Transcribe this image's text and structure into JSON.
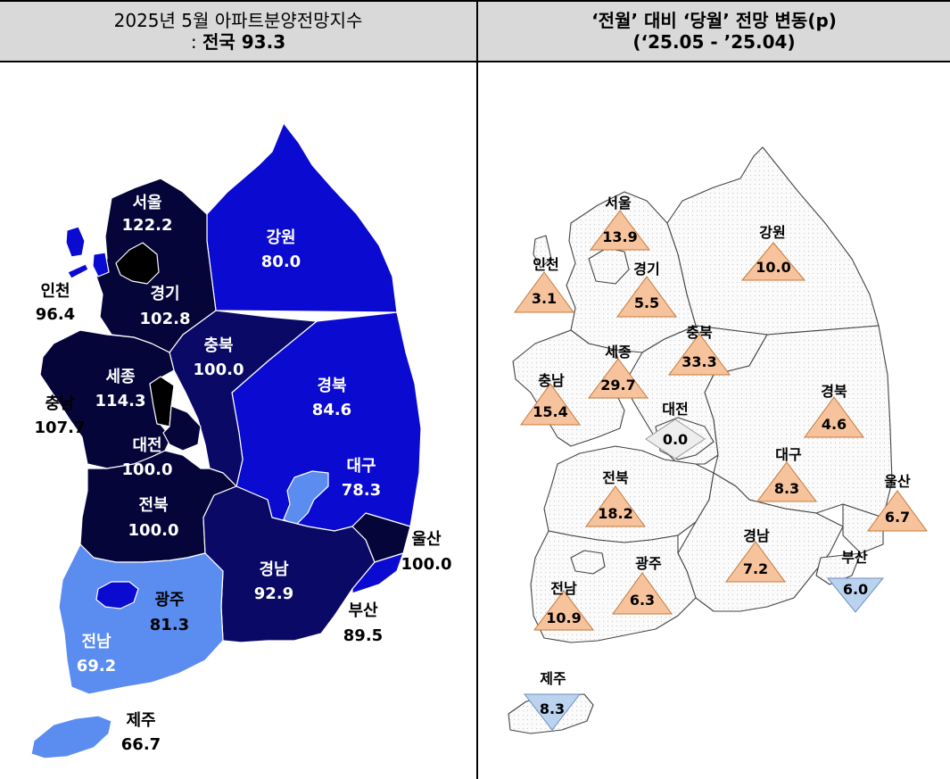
{
  "header": {
    "left_line1": "2025년 5월 아파트분양전망지수",
    "left_line2_prefix": ": ",
    "left_line2_bold": "전국 93.3",
    "right_line1": "‘전월’ 대비 ‘당월’ 전망 변동(p)",
    "right_line2": "(‘25.05 - ’25.04)"
  },
  "colors": {
    "dark_navy": "#05053a",
    "navy": "#0a0a66",
    "blue": "#0a0ad0",
    "light_blue": "#5b8cf0",
    "black": "#000000",
    "up_triangle": "#f7c39c",
    "down_triangle": "#bcd3f0",
    "neutral": "#eeeeee"
  },
  "left_map": {
    "regions": [
      {
        "name": "서울",
        "value": "122.2"
      },
      {
        "name": "인천",
        "value": "96.4"
      },
      {
        "name": "경기",
        "value": "102.8"
      },
      {
        "name": "강원",
        "value": "80.0"
      },
      {
        "name": "충북",
        "value": "100.0"
      },
      {
        "name": "세종",
        "value": "114.3"
      },
      {
        "name": "충남",
        "value": "107.7"
      },
      {
        "name": "대전",
        "value": "100.0"
      },
      {
        "name": "경북",
        "value": "84.6"
      },
      {
        "name": "대구",
        "value": "78.3"
      },
      {
        "name": "전북",
        "value": "100.0"
      },
      {
        "name": "울산",
        "value": "100.0"
      },
      {
        "name": "경남",
        "value": "92.9"
      },
      {
        "name": "광주",
        "value": "81.3"
      },
      {
        "name": "부산",
        "value": "89.5"
      },
      {
        "name": "전남",
        "value": "69.2"
      },
      {
        "name": "제주",
        "value": "66.7"
      }
    ]
  },
  "right_map": {
    "regions": [
      {
        "name": "서울",
        "change": "13.9",
        "direction": "up"
      },
      {
        "name": "강원",
        "change": "10.0",
        "direction": "up"
      },
      {
        "name": "인천",
        "change": "3.1",
        "direction": "up"
      },
      {
        "name": "경기",
        "change": "5.5",
        "direction": "up"
      },
      {
        "name": "세종",
        "change": "29.7",
        "direction": "up"
      },
      {
        "name": "충북",
        "change": "33.3",
        "direction": "up"
      },
      {
        "name": "충남",
        "change": "15.4",
        "direction": "up"
      },
      {
        "name": "대전",
        "change": "0.0",
        "direction": "flat"
      },
      {
        "name": "경북",
        "change": "4.6",
        "direction": "up"
      },
      {
        "name": "대구",
        "change": "8.3",
        "direction": "up"
      },
      {
        "name": "울산",
        "change": "6.7",
        "direction": "up"
      },
      {
        "name": "전북",
        "change": "18.2",
        "direction": "up"
      },
      {
        "name": "경남",
        "change": "7.2",
        "direction": "up"
      },
      {
        "name": "광주",
        "change": "6.3",
        "direction": "up"
      },
      {
        "name": "부산",
        "change": "6.0",
        "direction": "down"
      },
      {
        "name": "전남",
        "change": "10.9",
        "direction": "up"
      },
      {
        "name": "제주",
        "change": "8.3",
        "direction": "down"
      }
    ]
  }
}
